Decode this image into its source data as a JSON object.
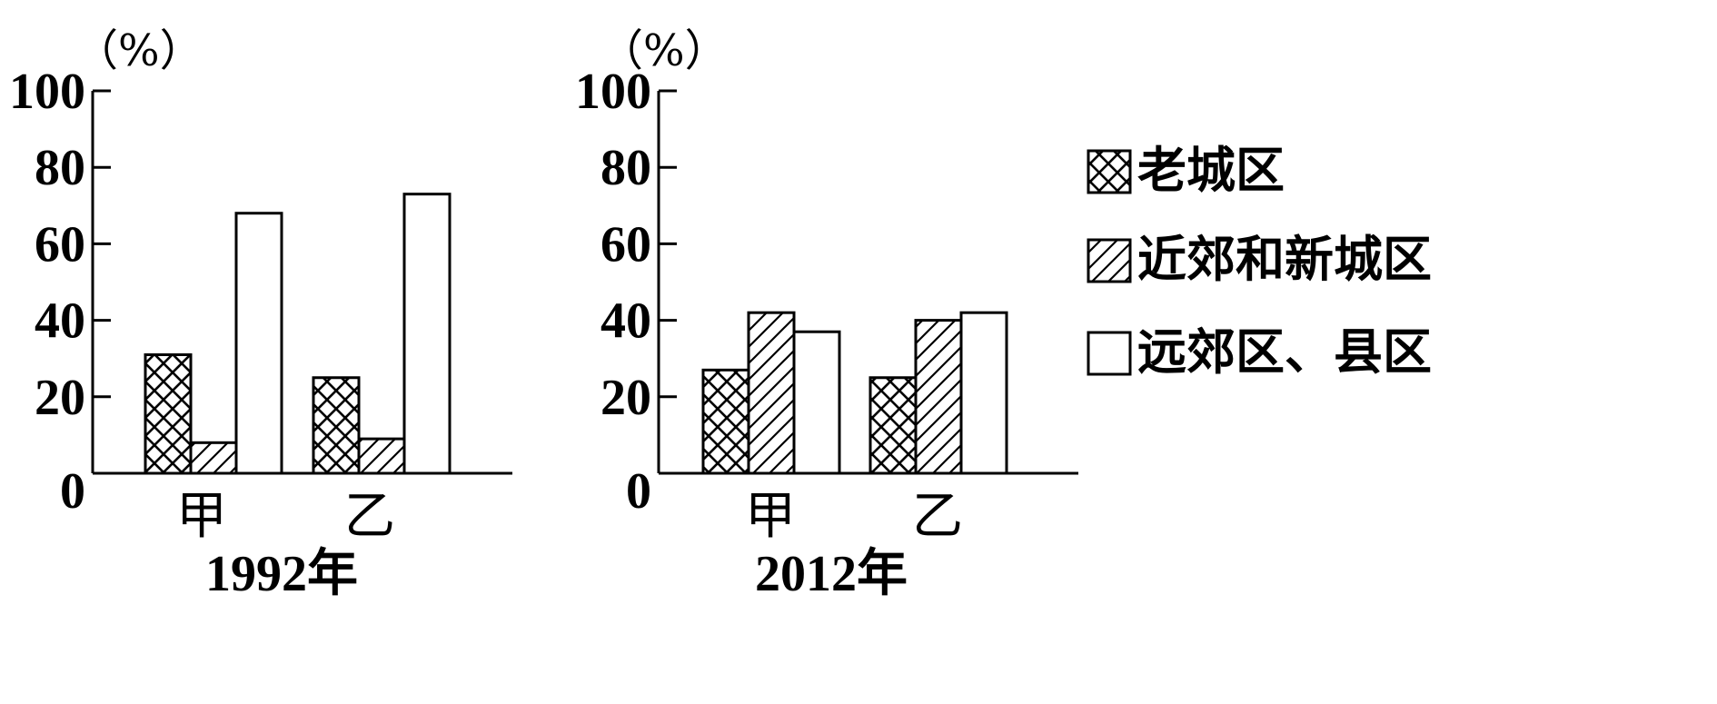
{
  "chart_data": [
    {
      "type": "bar",
      "title": "1992年",
      "unit": "（%）",
      "categories": [
        "甲",
        "乙"
      ],
      "ylim": [
        0,
        100
      ],
      "yticks": [
        "0",
        "20",
        "40",
        "60",
        "80",
        "100"
      ],
      "series": [
        {
          "name": "老城区",
          "pattern": "crosshatch",
          "values": [
            31,
            25
          ]
        },
        {
          "name": "近郊和新城区",
          "pattern": "diagonal",
          "values": [
            8,
            9
          ]
        },
        {
          "name": "远郊区、县区",
          "pattern": "blank",
          "values": [
            68,
            73
          ]
        }
      ]
    },
    {
      "type": "bar",
      "title": "2012年",
      "unit": "（%）",
      "categories": [
        "甲",
        "乙"
      ],
      "ylim": [
        0,
        100
      ],
      "yticks": [
        "0",
        "20",
        "40",
        "60",
        "80",
        "100"
      ],
      "series": [
        {
          "name": "老城区",
          "pattern": "crosshatch",
          "values": [
            27,
            25
          ]
        },
        {
          "name": "近郊和新城区",
          "pattern": "diagonal",
          "values": [
            42,
            40
          ]
        },
        {
          "name": "远郊区、县区",
          "pattern": "blank",
          "values": [
            37,
            42
          ]
        }
      ]
    }
  ],
  "legend": {
    "placement": "right",
    "items": [
      {
        "label": "老城区",
        "pattern": "crosshatch"
      },
      {
        "label": "近郊和新城区",
        "pattern": "diagonal"
      },
      {
        "label": "远郊区、县区",
        "pattern": "blank"
      }
    ]
  },
  "colors": {
    "ink": "#000000",
    "background": "#ffffff"
  }
}
